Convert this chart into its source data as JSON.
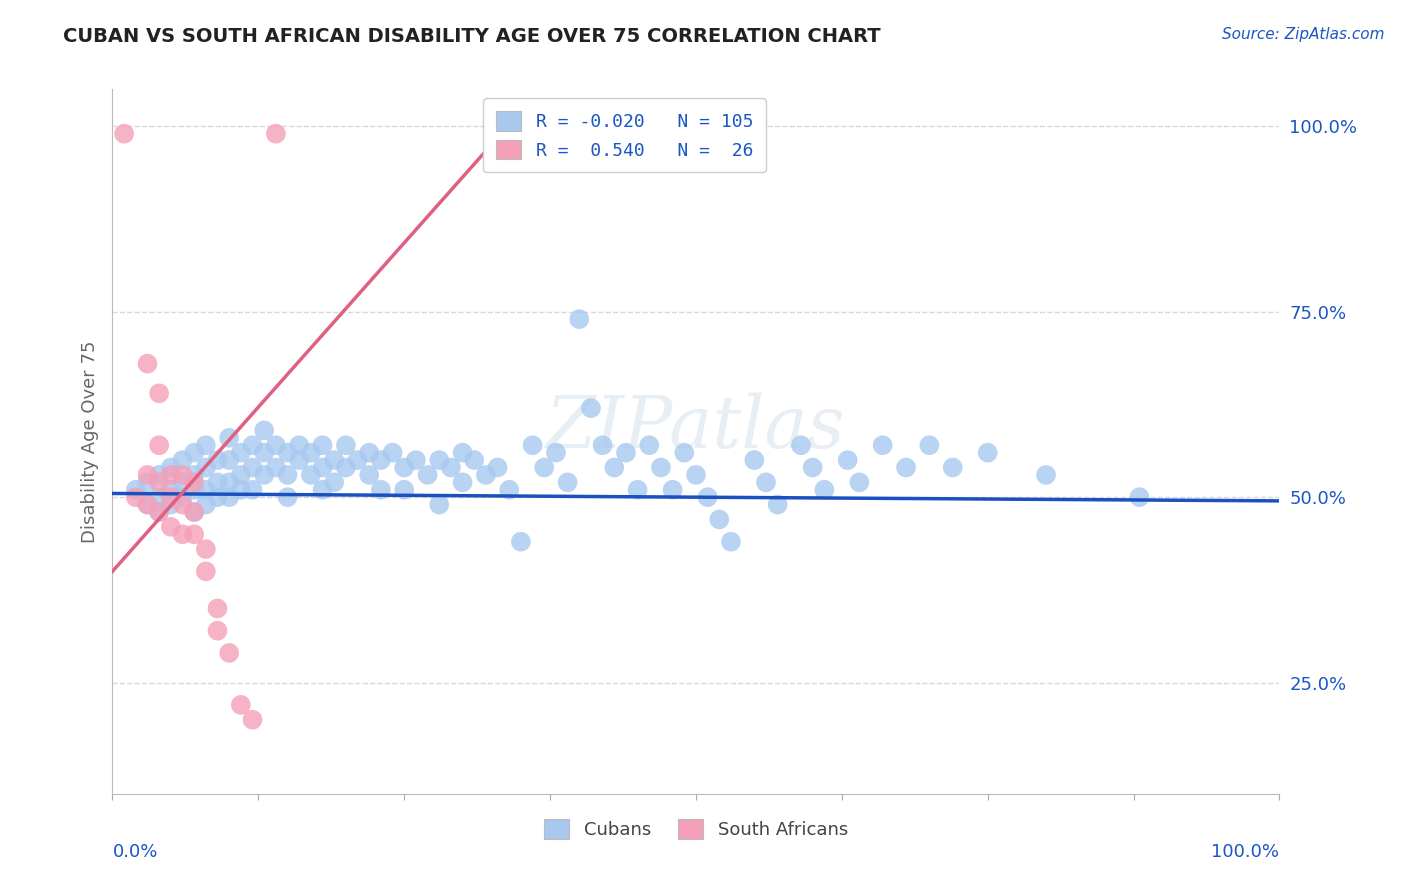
{
  "title": "CUBAN VS SOUTH AFRICAN DISABILITY AGE OVER 75 CORRELATION CHART",
  "source": "Source: ZipAtlas.com",
  "ylabel": "Disability Age Over 75",
  "xrange": [
    0.0,
    1.0
  ],
  "yrange": [
    0.1,
    1.05
  ],
  "legend_cubans_R": "-0.020",
  "legend_cubans_N": "105",
  "legend_sa_R": "0.540",
  "legend_sa_N": "26",
  "legend_label_cubans": "Cubans",
  "legend_label_sa": "South Africans",
  "cuban_color": "#a8c8f0",
  "sa_color": "#f4a0b8",
  "cuban_line_color": "#1a50c0",
  "sa_line_color": "#e06080",
  "cuban_scatter": [
    [
      0.02,
      0.51
    ],
    [
      0.03,
      0.52
    ],
    [
      0.03,
      0.49
    ],
    [
      0.04,
      0.53
    ],
    [
      0.04,
      0.5
    ],
    [
      0.04,
      0.48
    ],
    [
      0.05,
      0.54
    ],
    [
      0.05,
      0.51
    ],
    [
      0.05,
      0.49
    ],
    [
      0.06,
      0.55
    ],
    [
      0.06,
      0.52
    ],
    [
      0.06,
      0.5
    ],
    [
      0.07,
      0.56
    ],
    [
      0.07,
      0.53
    ],
    [
      0.07,
      0.51
    ],
    [
      0.07,
      0.48
    ],
    [
      0.08,
      0.57
    ],
    [
      0.08,
      0.54
    ],
    [
      0.08,
      0.51
    ],
    [
      0.08,
      0.49
    ],
    [
      0.09,
      0.55
    ],
    [
      0.09,
      0.52
    ],
    [
      0.09,
      0.5
    ],
    [
      0.1,
      0.58
    ],
    [
      0.1,
      0.55
    ],
    [
      0.1,
      0.52
    ],
    [
      0.1,
      0.5
    ],
    [
      0.11,
      0.56
    ],
    [
      0.11,
      0.53
    ],
    [
      0.11,
      0.51
    ],
    [
      0.12,
      0.57
    ],
    [
      0.12,
      0.54
    ],
    [
      0.12,
      0.51
    ],
    [
      0.13,
      0.59
    ],
    [
      0.13,
      0.56
    ],
    [
      0.13,
      0.53
    ],
    [
      0.14,
      0.57
    ],
    [
      0.14,
      0.54
    ],
    [
      0.15,
      0.56
    ],
    [
      0.15,
      0.53
    ],
    [
      0.15,
      0.5
    ],
    [
      0.16,
      0.57
    ],
    [
      0.16,
      0.55
    ],
    [
      0.17,
      0.56
    ],
    [
      0.17,
      0.53
    ],
    [
      0.18,
      0.57
    ],
    [
      0.18,
      0.54
    ],
    [
      0.18,
      0.51
    ],
    [
      0.19,
      0.55
    ],
    [
      0.19,
      0.52
    ],
    [
      0.2,
      0.57
    ],
    [
      0.2,
      0.54
    ],
    [
      0.21,
      0.55
    ],
    [
      0.22,
      0.56
    ],
    [
      0.22,
      0.53
    ],
    [
      0.23,
      0.55
    ],
    [
      0.23,
      0.51
    ],
    [
      0.24,
      0.56
    ],
    [
      0.25,
      0.54
    ],
    [
      0.25,
      0.51
    ],
    [
      0.26,
      0.55
    ],
    [
      0.27,
      0.53
    ],
    [
      0.28,
      0.55
    ],
    [
      0.28,
      0.49
    ],
    [
      0.29,
      0.54
    ],
    [
      0.3,
      0.56
    ],
    [
      0.3,
      0.52
    ],
    [
      0.31,
      0.55
    ],
    [
      0.32,
      0.53
    ],
    [
      0.33,
      0.54
    ],
    [
      0.34,
      0.51
    ],
    [
      0.35,
      0.44
    ],
    [
      0.36,
      0.57
    ],
    [
      0.37,
      0.54
    ],
    [
      0.38,
      0.56
    ],
    [
      0.39,
      0.52
    ],
    [
      0.4,
      0.74
    ],
    [
      0.41,
      0.62
    ],
    [
      0.42,
      0.57
    ],
    [
      0.43,
      0.54
    ],
    [
      0.44,
      0.56
    ],
    [
      0.45,
      0.51
    ],
    [
      0.46,
      0.57
    ],
    [
      0.47,
      0.54
    ],
    [
      0.48,
      0.51
    ],
    [
      0.49,
      0.56
    ],
    [
      0.5,
      0.53
    ],
    [
      0.51,
      0.5
    ],
    [
      0.52,
      0.47
    ],
    [
      0.53,
      0.44
    ],
    [
      0.55,
      0.55
    ],
    [
      0.56,
      0.52
    ],
    [
      0.57,
      0.49
    ],
    [
      0.59,
      0.57
    ],
    [
      0.6,
      0.54
    ],
    [
      0.61,
      0.51
    ],
    [
      0.63,
      0.55
    ],
    [
      0.64,
      0.52
    ],
    [
      0.66,
      0.57
    ],
    [
      0.68,
      0.54
    ],
    [
      0.7,
      0.57
    ],
    [
      0.72,
      0.54
    ],
    [
      0.75,
      0.56
    ],
    [
      0.8,
      0.53
    ],
    [
      0.88,
      0.5
    ]
  ],
  "sa_scatter": [
    [
      0.01,
      0.99
    ],
    [
      0.03,
      0.68
    ],
    [
      0.04,
      0.64
    ],
    [
      0.02,
      0.5
    ],
    [
      0.03,
      0.53
    ],
    [
      0.03,
      0.49
    ],
    [
      0.04,
      0.57
    ],
    [
      0.04,
      0.52
    ],
    [
      0.04,
      0.48
    ],
    [
      0.05,
      0.53
    ],
    [
      0.05,
      0.5
    ],
    [
      0.05,
      0.46
    ],
    [
      0.06,
      0.53
    ],
    [
      0.06,
      0.49
    ],
    [
      0.06,
      0.45
    ],
    [
      0.07,
      0.52
    ],
    [
      0.07,
      0.48
    ],
    [
      0.07,
      0.45
    ],
    [
      0.08,
      0.43
    ],
    [
      0.08,
      0.4
    ],
    [
      0.09,
      0.35
    ],
    [
      0.09,
      0.32
    ],
    [
      0.1,
      0.29
    ],
    [
      0.11,
      0.22
    ],
    [
      0.12,
      0.2
    ],
    [
      0.14,
      0.99
    ]
  ],
  "background_color": "#ffffff",
  "grid_color": "#d8d8d8",
  "title_color": "#222222",
  "axis_label_color": "#1a56c4",
  "watermark": "ZIPatlas"
}
